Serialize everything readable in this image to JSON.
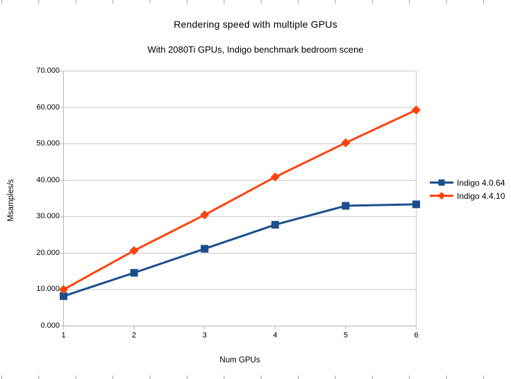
{
  "chart_data": {
    "type": "line",
    "title": "Rendering speed with multiple GPUs",
    "subtitle": "With 2080Ti GPUs, Indigo benchmark bedroom scene",
    "xlabel": "Num GPUs",
    "ylabel": "Msamples/s",
    "x": [
      1,
      2,
      3,
      4,
      5,
      6
    ],
    "x_tick_labels": [
      "1",
      "2",
      "3",
      "4",
      "5",
      "6"
    ],
    "series": [
      {
        "name": "Indigo 4.0.64",
        "color": "#1B4E8C",
        "marker": "square",
        "values": [
          8.2,
          14.6,
          21.2,
          27.8,
          33.0,
          33.4
        ]
      },
      {
        "name": "Indigo 4.4.10",
        "color": "#FF420E",
        "marker": "diamond",
        "values": [
          10.0,
          20.7,
          30.5,
          40.9,
          50.3,
          59.3
        ]
      }
    ],
    "ylim": [
      0,
      70
    ],
    "ytick_step": 10,
    "y_tick_labels": [
      "0.000",
      "10.000",
      "20.000",
      "30.000",
      "40.000",
      "50.000",
      "60.000",
      "70.000"
    ],
    "grid": "horizontal",
    "legend_position": "right",
    "colors": {
      "grid": "#c9c9c9",
      "axis": "#b3b3b3",
      "edge_ticks": "#9a9a9a",
      "text": "#000000",
      "background": "#ffffff"
    }
  }
}
